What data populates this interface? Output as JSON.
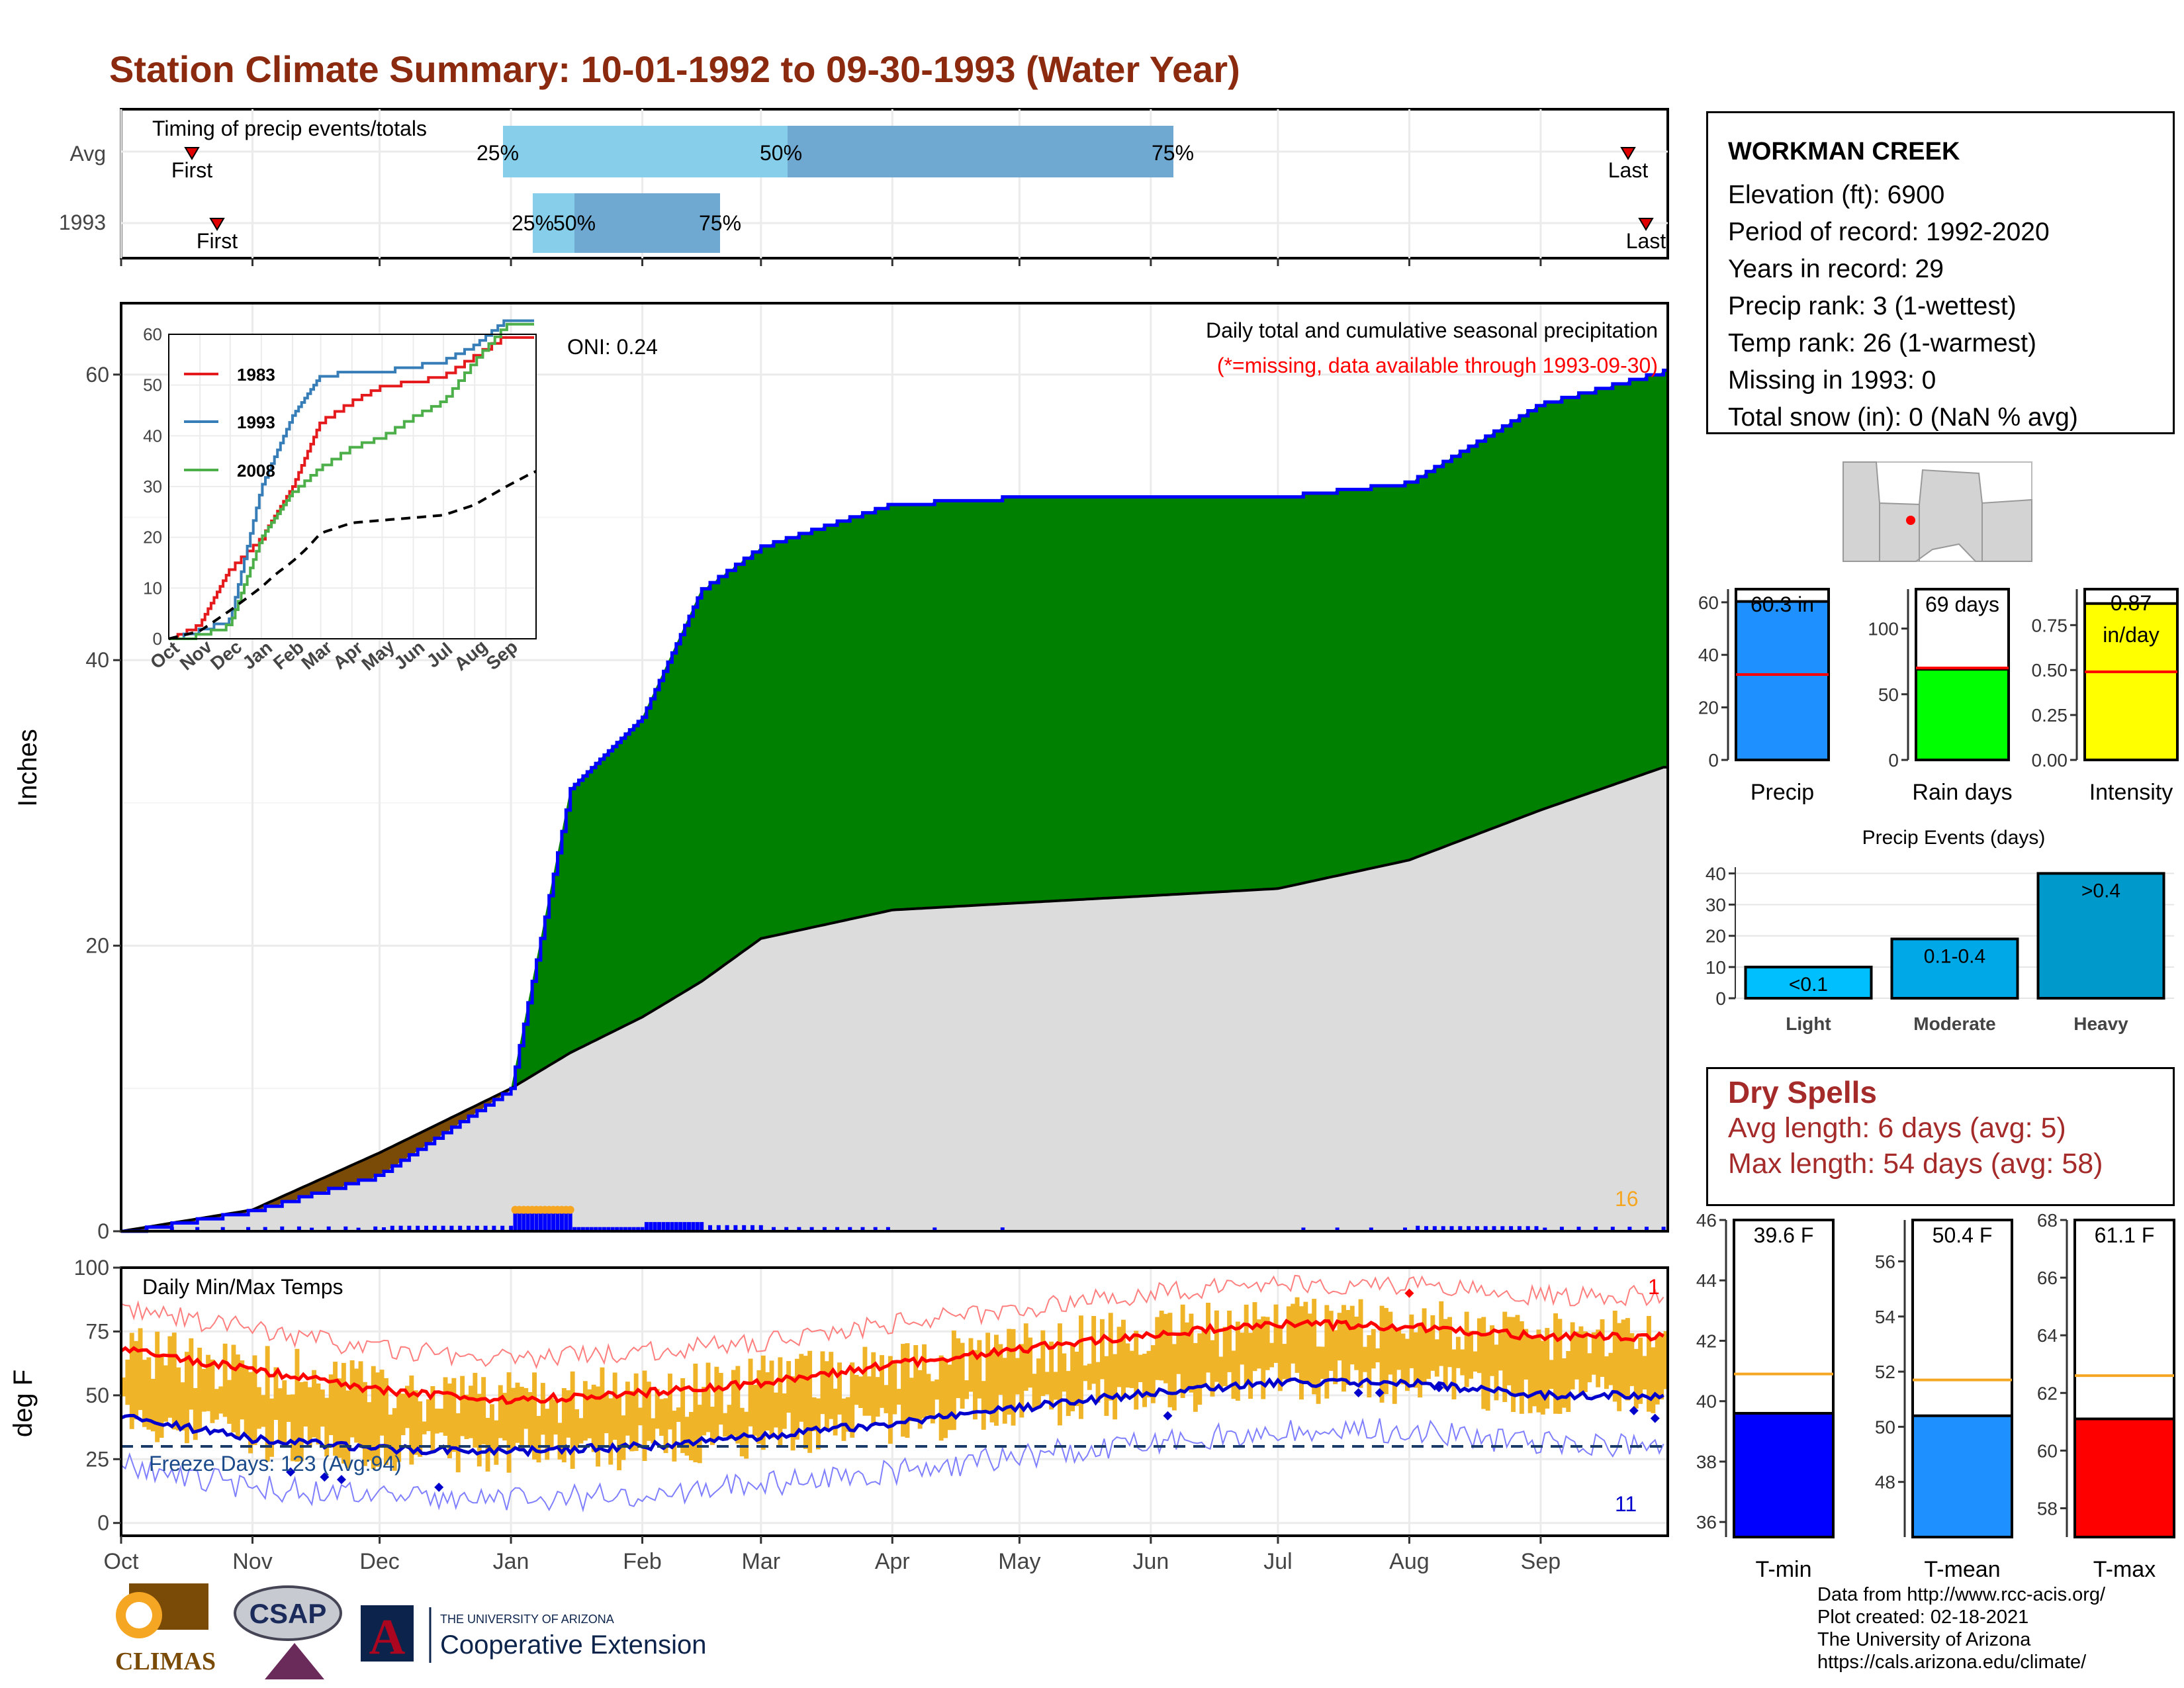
{
  "title": "Station Climate Summary: 10-01-1992 to 09-30-1993 (Water Year)",
  "timing": {
    "label": "Timing of precip events/totals",
    "rows": [
      "Avg",
      "1993"
    ],
    "markers": {
      "first": "First",
      "last": "Last"
    },
    "pct": [
      "25%",
      "50%",
      "75%"
    ]
  },
  "station": {
    "name": "WORKMAN CREEK",
    "lines": [
      "Elevation (ft): 6900",
      "Period of record: 1992-2020",
      "Years in record: 29",
      "Precip rank: 3 (1-wettest)",
      "Temp rank: 26 (1-warmest)",
      "Missing in 1993: 0",
      "Total snow (in): 0 (NaN % avg)"
    ]
  },
  "precip_panel": {
    "ylabel": "Inches",
    "oni": "ONI: 0.24",
    "subtitle": "Daily total and cumulative seasonal precipitation",
    "missing_note": "(*=missing, data available through 1993-09-30)",
    "count_label": "16"
  },
  "inset": {
    "legend": [
      "1983",
      "1993",
      "2008"
    ]
  },
  "temp_panel": {
    "ylabel": "deg F",
    "title": "Daily Min/Max Temps",
    "freeze": "Freeze Days: 123 (Avg:94)",
    "count_hi": "1",
    "count_lo": "11"
  },
  "months": [
    "Oct",
    "Nov",
    "Dec",
    "Jan",
    "Feb",
    "Mar",
    "Apr",
    "May",
    "Jun",
    "Jul",
    "Aug",
    "Sep"
  ],
  "inset_months": [
    "Oct",
    "Nov",
    "Dec",
    "Jan",
    "Feb",
    "Mar",
    "Apr",
    "May",
    "Jun",
    "Jul",
    "Aug",
    "Sep"
  ],
  "bar_charts": {
    "precip": {
      "label": "Precip",
      "text": "60.3 in"
    },
    "rain": {
      "label": "Rain days",
      "text": "69 days"
    },
    "intensity": {
      "label": "Intensity",
      "text_line1": "0.87",
      "text_line2": "in/day"
    }
  },
  "events": {
    "title": "Precip Events (days)",
    "bars": [
      "<0.1",
      "0.1-0.4",
      ">0.4"
    ],
    "cats": [
      "Light",
      "Moderate",
      "Heavy"
    ]
  },
  "dry": {
    "heading": "Dry Spells",
    "avg": "Avg length: 6 days (avg: 5)",
    "max": "Max length: 54 days (avg: 58)"
  },
  "temp_bars": {
    "tmin": {
      "label": "T-min",
      "text": "39.6 F"
    },
    "tmean": {
      "label": "T-mean",
      "text": "50.4 F"
    },
    "tmax": {
      "label": "T-max",
      "text": "61.1 F"
    }
  },
  "footer": {
    "lines": [
      "Data from http://www.rcc-acis.org/",
      "Plot created: 02-18-2021",
      "The University of Arizona",
      "https://cals.arizona.edu/climate/"
    ],
    "climas": "CLIMAS",
    "csap": "CSAP",
    "ua_small": "THE UNIVERSITY OF ARIZONA",
    "ua_big": "Cooperative Extension"
  },
  "chart_data": [
    {
      "type": "area",
      "title": "Daily total and cumulative seasonal precipitation",
      "ylabel": "Inches",
      "ylim": [
        0,
        65
      ],
      "x": [
        "1992-10-01",
        "1992-11-01",
        "1992-12-01",
        "1993-01-01",
        "1993-01-15",
        "1993-02-01",
        "1993-02-15",
        "1993-03-01",
        "1993-04-01",
        "1993-05-01",
        "1993-06-01",
        "1993-07-01",
        "1993-08-01",
        "1993-09-01",
        "1993-09-30"
      ],
      "series": [
        {
          "name": "1993",
          "values": [
            0,
            1.5,
            4,
            10,
            31,
            36,
            45,
            48,
            51,
            51.5,
            51.5,
            51.5,
            52.5,
            58,
            60.3
          ]
        },
        {
          "name": "Avg",
          "values": [
            0,
            1.5,
            5.5,
            10,
            12.5,
            15,
            17.5,
            20.5,
            22.5,
            23,
            23.5,
            24,
            26,
            29.5,
            32.5
          ]
        }
      ]
    },
    {
      "type": "line",
      "title": "Daily Min/Max Temps",
      "ylabel": "deg F",
      "ylim": [
        -5,
        100
      ],
      "x": [
        "Oct",
        "Nov",
        "Dec",
        "Jan",
        "Feb",
        "Mar",
        "Apr",
        "May",
        "Jun",
        "Jul",
        "Aug",
        "Sep"
      ],
      "series": [
        {
          "name": "Avg max",
          "values": [
            68,
            60,
            52,
            48,
            51,
            55,
            62,
            68,
            74,
            78,
            77,
            73
          ]
        },
        {
          "name": "Avg min",
          "values": [
            42,
            33,
            29,
            28,
            30,
            34,
            39,
            45,
            51,
            55,
            55,
            50
          ]
        }
      ]
    },
    {
      "type": "line",
      "xlabel": "",
      "ylim": [
        0,
        60
      ],
      "x": [
        "Oct",
        "Nov",
        "Dec",
        "Jan",
        "Feb",
        "Mar",
        "Apr",
        "May",
        "Jun",
        "Jul",
        "Aug",
        "Sep"
      ],
      "series": [
        {
          "name": "1983",
          "values": [
            0,
            3,
            14,
            20,
            30,
            43,
            47,
            50,
            51,
            52,
            56,
            60
          ]
        },
        {
          "name": "1993",
          "values": [
            0,
            2,
            4,
            30,
            44,
            52,
            53,
            53,
            54,
            55,
            58,
            63
          ]
        },
        {
          "name": "2008",
          "values": [
            0,
            1,
            3,
            20,
            29,
            34,
            38,
            40,
            44,
            47,
            55,
            62
          ]
        }
      ]
    },
    {
      "type": "bar",
      "categories": [
        "Precip"
      ],
      "values": [
        60.3
      ],
      "ylim": [
        0,
        65
      ]
    },
    {
      "type": "bar",
      "categories": [
        "Rain days"
      ],
      "values": [
        69
      ],
      "ylim": [
        0,
        130
      ]
    },
    {
      "type": "bar",
      "categories": [
        "Intensity"
      ],
      "values": [
        0.87
      ],
      "ylim": [
        0,
        0.95
      ]
    },
    {
      "type": "bar",
      "title": "Precip Events (days)",
      "categories": [
        "Light",
        "Moderate",
        "Heavy"
      ],
      "values": [
        10,
        19,
        40
      ],
      "ylim": [
        0,
        42
      ]
    },
    {
      "type": "bar",
      "categories": [
        "T-min"
      ],
      "values": [
        39.6
      ],
      "ylim": [
        35.5,
        46
      ]
    },
    {
      "type": "bar",
      "categories": [
        "T-mean"
      ],
      "values": [
        50.4
      ],
      "ylim": [
        46,
        57.5
      ]
    },
    {
      "type": "bar",
      "categories": [
        "T-max"
      ],
      "values": [
        61.1
      ],
      "ylim": [
        57,
        68
      ]
    }
  ],
  "colors": {
    "title": "#8b2a0e",
    "green": "#008000",
    "brown": "#7a4a07",
    "blue": "#0000ff",
    "orange": "#f5a623",
    "red": "#ff0000",
    "light_blue": "#87ceeb",
    "mid_blue": "#6fa8d0",
    "dry": "#a52a2a"
  }
}
